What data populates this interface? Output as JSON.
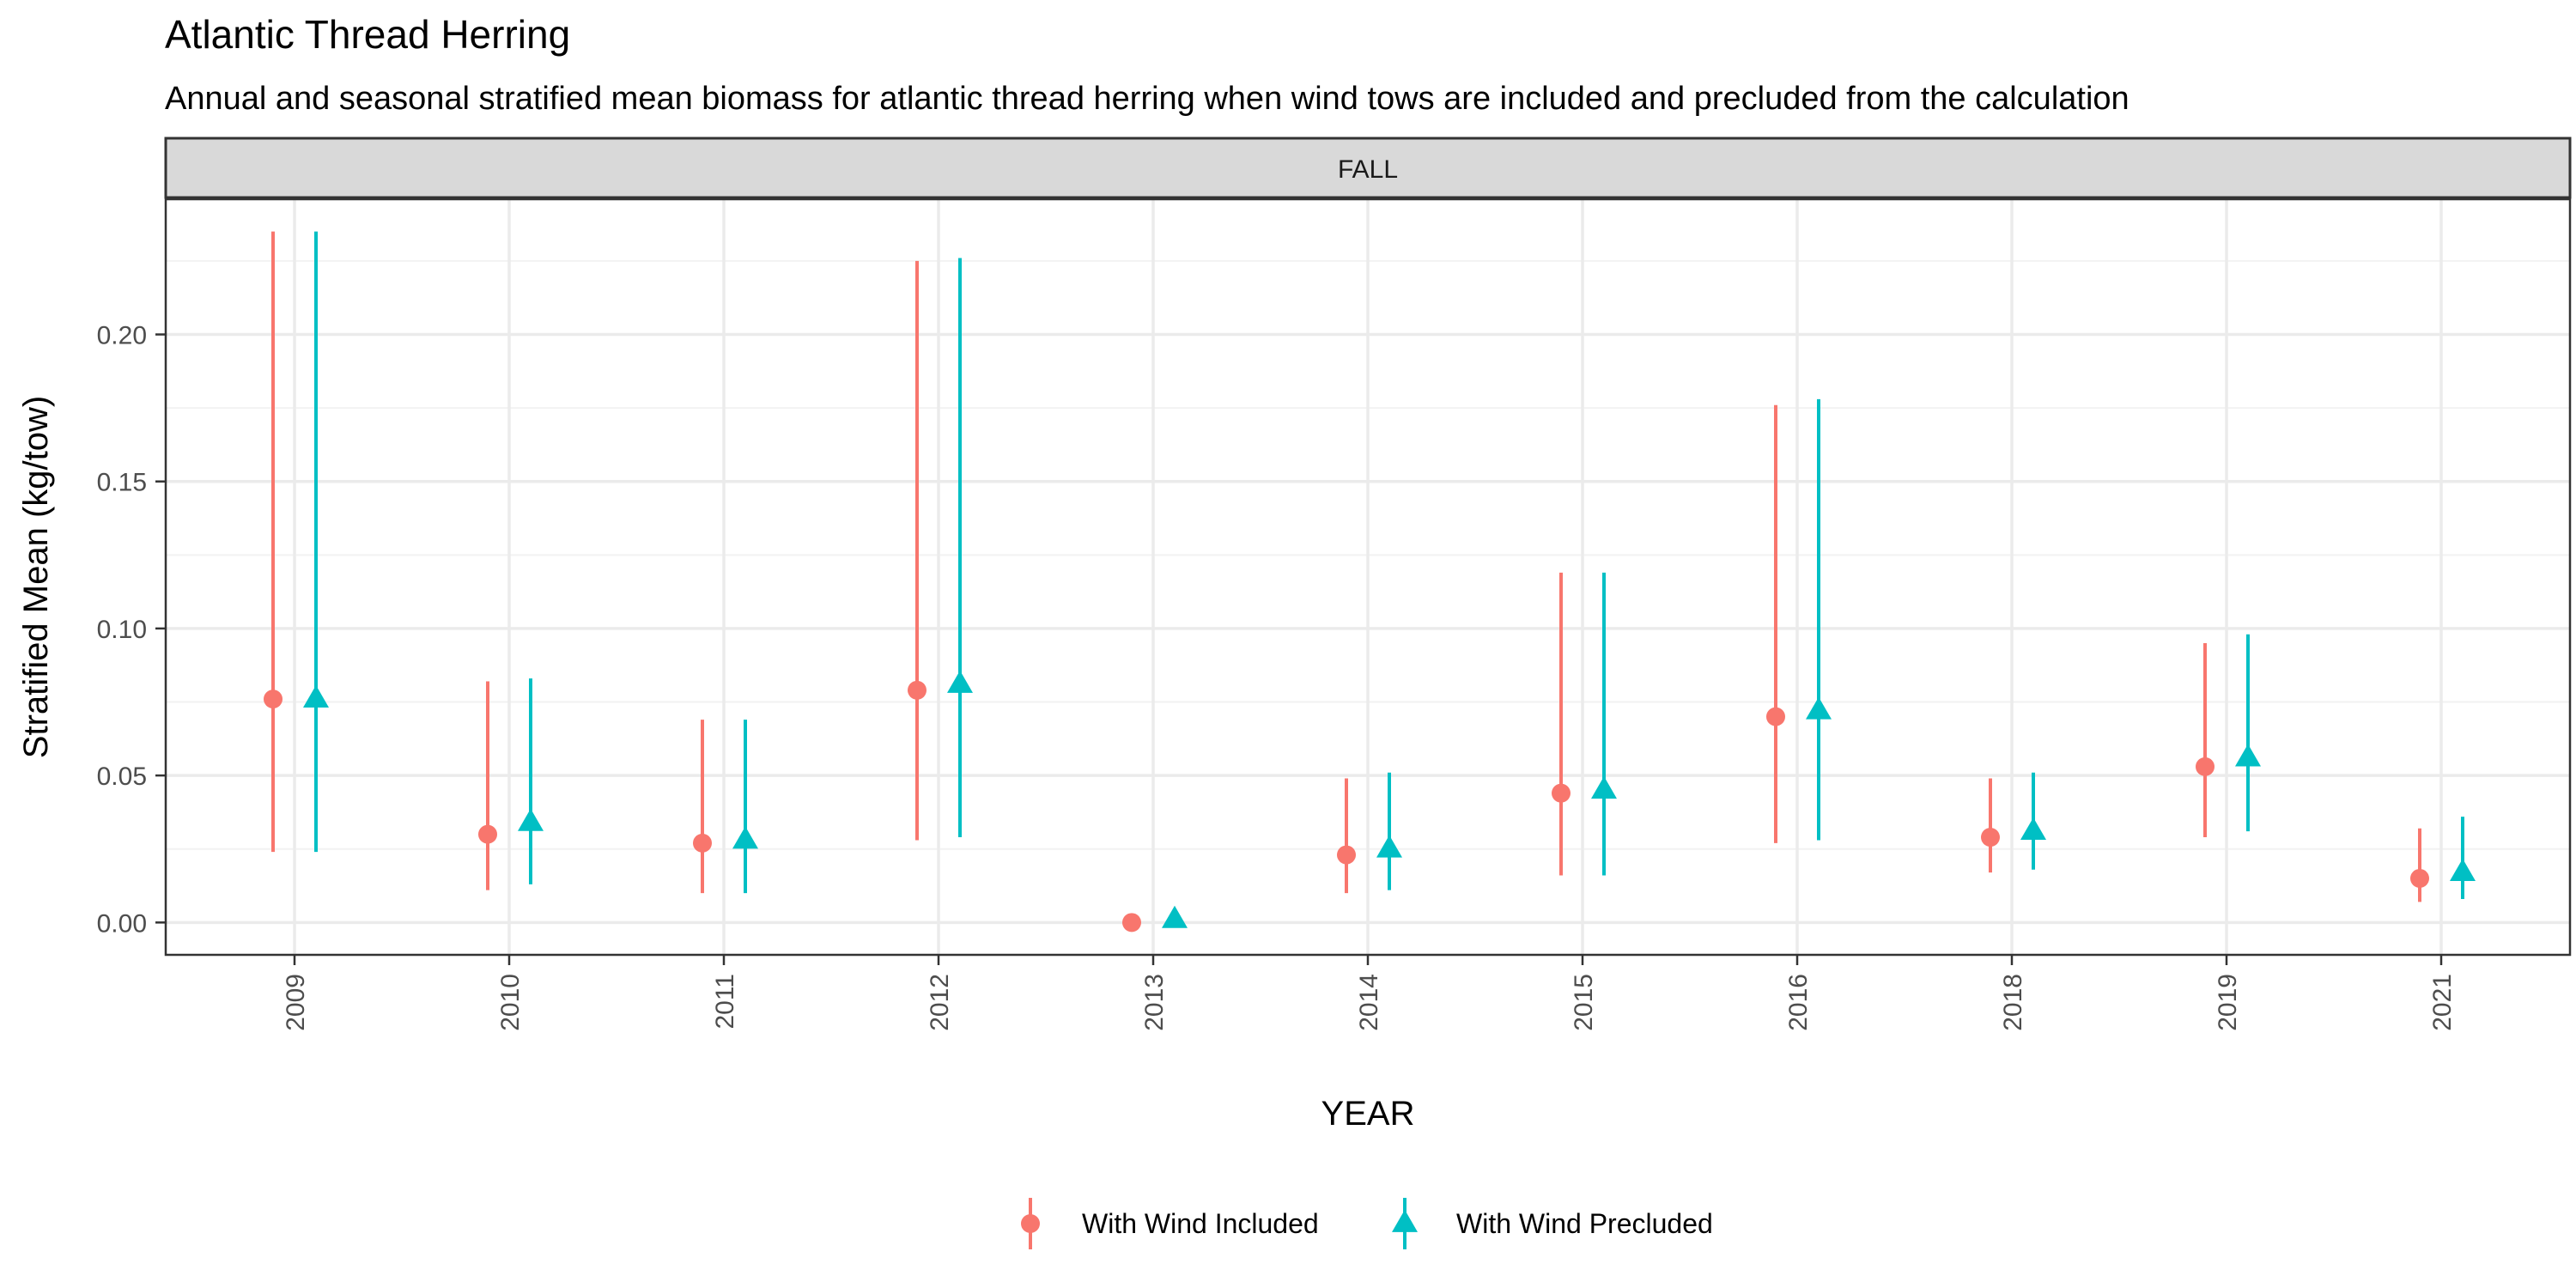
{
  "chart_data": {
    "type": "scatter",
    "title": "Atlantic Thread Herring",
    "subtitle": "Annual and seasonal stratified mean biomass for atlantic thread herring when wind tows are included and precluded from the calculation",
    "facet": "FALL",
    "xlabel": "YEAR",
    "ylabel": "Stratified Mean (kg/tow)",
    "ylim": [
      -0.011,
      0.246
    ],
    "y_ticks": [
      0.0,
      0.05,
      0.1,
      0.15,
      0.2
    ],
    "y_tick_labels": [
      "0.00",
      "0.05",
      "0.10",
      "0.15",
      "0.20"
    ],
    "categories": [
      "2009",
      "2010",
      "2011",
      "2012",
      "2013",
      "2014",
      "2015",
      "2016",
      "2018",
      "2019",
      "2021"
    ],
    "grid": true,
    "legend_position": "bottom",
    "series": [
      {
        "name": "With Wind Included",
        "color": "#F8766D",
        "marker": "circle",
        "values": [
          0.076,
          0.03,
          0.027,
          0.079,
          0.0,
          0.023,
          0.044,
          0.07,
          0.029,
          0.053,
          0.015
        ],
        "lower": [
          0.024,
          0.011,
          0.01,
          0.028,
          0.0,
          0.01,
          0.016,
          0.027,
          0.017,
          0.029,
          0.007
        ],
        "upper": [
          0.235,
          0.082,
          0.069,
          0.225,
          0.0,
          0.049,
          0.119,
          0.176,
          0.049,
          0.095,
          0.032
        ]
      },
      {
        "name": "With Wind Precluded",
        "color": "#00BFC4",
        "marker": "triangle",
        "values": [
          0.076,
          0.034,
          0.028,
          0.081,
          0.001,
          0.025,
          0.045,
          0.072,
          0.031,
          0.056,
          0.017
        ],
        "lower": [
          0.024,
          0.013,
          0.01,
          0.029,
          0.0,
          0.011,
          0.016,
          0.028,
          0.018,
          0.031,
          0.008
        ],
        "upper": [
          0.235,
          0.083,
          0.069,
          0.226,
          0.001,
          0.051,
          0.119,
          0.178,
          0.051,
          0.098,
          0.036
        ]
      }
    ]
  }
}
